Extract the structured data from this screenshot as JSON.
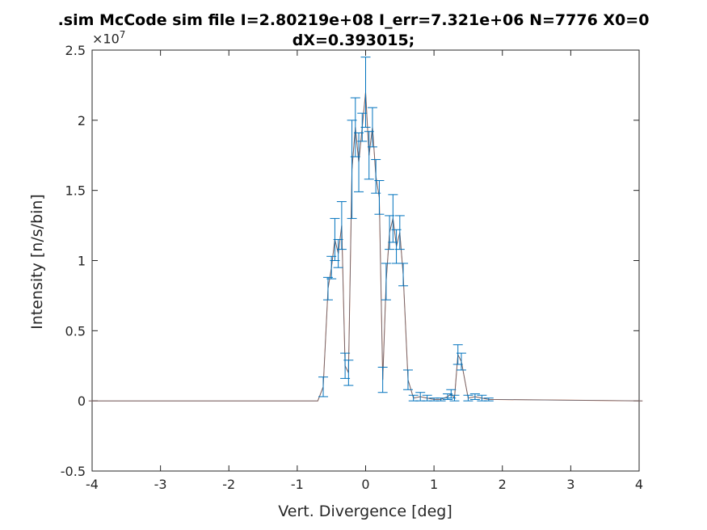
{
  "chart_data": {
    "type": "line",
    "title": ".sim McCode sim file I=2.80219e+08 I_err=7.321e+06 N=7776 X0=0",
    "title_line2": "dX=0.393015;",
    "xlabel": "Vert. Divergence [deg]",
    "ylabel": "Intensity [n/s/bin]",
    "y_exponent_base": "×10",
    "y_exponent_power": "7",
    "xlim": [
      -4,
      4
    ],
    "ylim": [
      -0.5,
      2.5
    ],
    "xticks": [
      "-4",
      "-3",
      "-2",
      "-1",
      "0",
      "1",
      "2",
      "3",
      "4"
    ],
    "yticks": [
      "-0.5",
      "0",
      "0.5",
      "1",
      "1.5",
      "2",
      "2.5"
    ],
    "grid": false,
    "colors": {
      "errorbar": "#0072BD",
      "line": "#D95319",
      "axes": "#262626"
    },
    "x": [
      -4.05,
      -0.7,
      -0.62,
      -0.55,
      -0.5,
      -0.45,
      -0.4,
      -0.35,
      -0.3,
      -0.25,
      -0.2,
      -0.15,
      -0.1,
      -0.05,
      0.0,
      0.05,
      0.1,
      0.15,
      0.2,
      0.25,
      0.3,
      0.35,
      0.4,
      0.45,
      0.5,
      0.55,
      0.62,
      0.7,
      0.8,
      0.9,
      1.0,
      1.1,
      1.2,
      1.25,
      1.3,
      1.35,
      1.4,
      1.5,
      1.6,
      1.7,
      1.8,
      4.05
    ],
    "series": [
      {
        "values": [
          0,
          0,
          0.1,
          0.8,
          0.95,
          1.15,
          1.05,
          1.25,
          0.25,
          0.2,
          1.65,
          1.95,
          1.7,
          1.95,
          2.2,
          1.75,
          1.95,
          1.6,
          1.45,
          0.15,
          0.85,
          1.2,
          1.3,
          1.1,
          1.2,
          0.9,
          0.15,
          0.02,
          0.03,
          0.02,
          0.01,
          0.01,
          0.03,
          0.05,
          0.02,
          0.33,
          0.28,
          0.02,
          0.03,
          0.02,
          0.01,
          0
        ],
        "errors": [
          0,
          0,
          0.07,
          0.08,
          0.08,
          0.15,
          0.1,
          0.17,
          0.09,
          0.09,
          0.35,
          0.21,
          0.21,
          0.1,
          0.25,
          0.17,
          0.14,
          0.12,
          0.12,
          0.09,
          0.13,
          0.12,
          0.17,
          0.12,
          0.12,
          0.08,
          0.07,
          0.02,
          0.03,
          0.02,
          0.01,
          0.01,
          0.02,
          0.03,
          0.02,
          0.07,
          0.06,
          0.02,
          0.02,
          0.02,
          0.01,
          0
        ]
      }
    ]
  }
}
